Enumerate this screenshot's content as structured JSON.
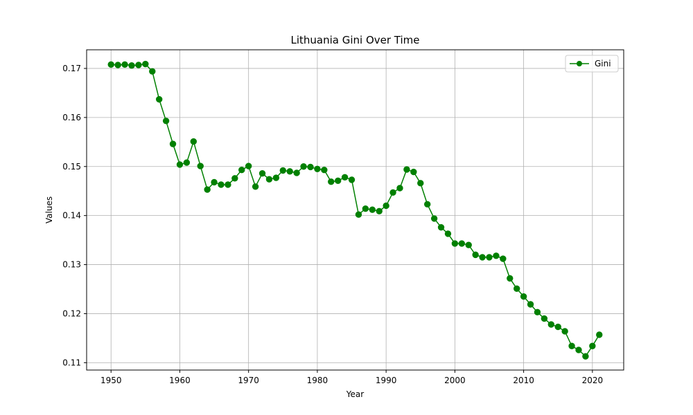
{
  "chart_data": {
    "type": "line",
    "title": "Lithuania Gini Over Time",
    "xlabel": "Year",
    "ylabel": "Values",
    "xlim": [
      1946.45,
      2024.55
    ],
    "ylim": [
      0.1085,
      0.1738
    ],
    "xticks": [
      1950,
      1960,
      1970,
      1980,
      1990,
      2000,
      2010,
      2020
    ],
    "yticks": [
      0.11,
      0.12,
      0.13,
      0.14,
      0.15,
      0.16,
      0.17
    ],
    "ytick_labels": [
      "0.11",
      "0.12",
      "0.13",
      "0.14",
      "0.15",
      "0.16",
      "0.17"
    ],
    "grid": true,
    "legend_position": "top-right",
    "series": [
      {
        "name": "Gini",
        "color": "#008000",
        "marker": "circle",
        "x": [
          1950,
          1951,
          1952,
          1953,
          1954,
          1955,
          1956,
          1957,
          1958,
          1959,
          1960,
          1961,
          1962,
          1963,
          1964,
          1965,
          1966,
          1967,
          1968,
          1969,
          1970,
          1971,
          1972,
          1973,
          1974,
          1975,
          1976,
          1977,
          1978,
          1979,
          1980,
          1981,
          1982,
          1983,
          1984,
          1985,
          1986,
          1987,
          1988,
          1989,
          1990,
          1991,
          1992,
          1993,
          1994,
          1995,
          1996,
          1997,
          1998,
          1999,
          2000,
          2001,
          2002,
          2003,
          2004,
          2005,
          2006,
          2007,
          2008,
          2009,
          2010,
          2011,
          2012,
          2013,
          2014,
          2015,
          2016,
          2017,
          2018,
          2019,
          2020,
          2021
        ],
        "y": [
          0.1708,
          0.1707,
          0.1708,
          0.1706,
          0.1707,
          0.1709,
          0.1694,
          0.1637,
          0.1593,
          0.1546,
          0.1504,
          0.1508,
          0.1551,
          0.1501,
          0.1453,
          0.1468,
          0.1463,
          0.1463,
          0.1476,
          0.1493,
          0.1501,
          0.1459,
          0.1486,
          0.1474,
          0.1477,
          0.1492,
          0.149,
          0.1487,
          0.15,
          0.1499,
          0.1495,
          0.1493,
          0.1469,
          0.1471,
          0.1478,
          0.1473,
          0.1402,
          0.1414,
          0.1412,
          0.1409,
          0.142,
          0.1447,
          0.1456,
          0.1494,
          0.1489,
          0.1466,
          0.1423,
          0.1394,
          0.1376,
          0.1363,
          0.1343,
          0.1343,
          0.134,
          0.132,
          0.1315,
          0.1315,
          0.1318,
          0.1312,
          0.1272,
          0.1251,
          0.1235,
          0.1219,
          0.1203,
          0.119,
          0.1178,
          0.1173,
          0.1164,
          0.1134,
          0.1126,
          0.1113,
          0.1134,
          0.1157
        ]
      }
    ]
  }
}
